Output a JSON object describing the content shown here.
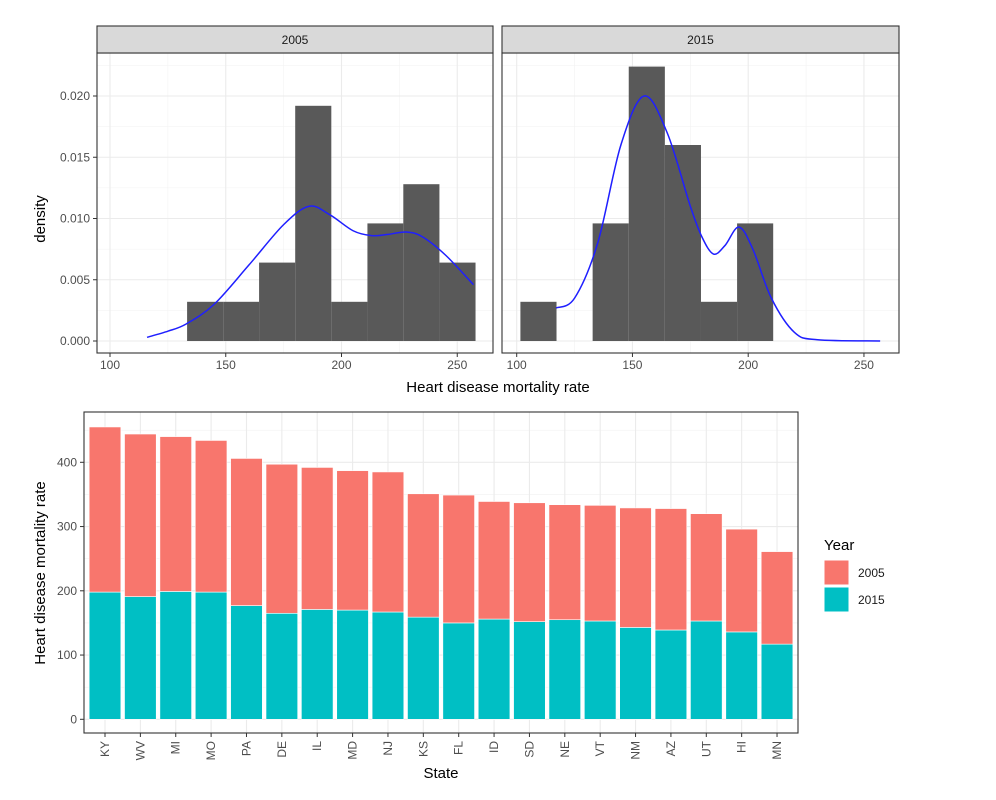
{
  "chart_data": [
    {
      "type": "histogram",
      "facets": [
        "2005",
        "2015"
      ],
      "xlabel": "Heart disease mortality rate",
      "ylabel": "density",
      "xlim": [
        95,
        265
      ],
      "ylim": [
        -0.0011,
        0.0235
      ],
      "x_ticks": [
        100,
        150,
        200,
        250
      ],
      "y_ticks": [
        "0.000",
        "0.005",
        "0.010",
        "0.015",
        "0.020"
      ],
      "grid": true,
      "bar_color": "#595959",
      "density_color": "#1f1fff",
      "panels": [
        {
          "facet": "2005",
          "bin_edges": [
            133.3,
            148.9,
            164.4,
            180.0,
            195.6,
            211.2,
            226.7,
            242.3,
            257.9
          ],
          "density": [
            0.0032,
            0.0032,
            0.0064,
            0.0192,
            0.0032,
            0.0096,
            0.0128,
            0.0064
          ],
          "density_curve": {
            "x": [
              116,
              125,
              133,
              145,
              160,
              175,
              186,
              195,
              205,
              213,
              220,
              228,
              235,
              245,
              257
            ],
            "y": [
              0.0003,
              0.0008,
              0.0014,
              0.003,
              0.0062,
              0.0095,
              0.011,
              0.0103,
              0.009,
              0.0086,
              0.0087,
              0.0089,
              0.0085,
              0.007,
              0.0046
            ]
          }
        },
        {
          "facet": "2015",
          "bin_edges": [
            101.6,
            117.2,
            132.8,
            148.4,
            164.0,
            179.6,
            195.2,
            210.8
          ],
          "density": [
            0.0032,
            0,
            0.0096,
            0.0224,
            0.016,
            0.0032,
            0.0096
          ],
          "density_curve": {
            "x": [
              117,
              125,
              135,
              145,
              155,
              165,
              175,
              180,
              185,
              190,
              196,
              202,
              210,
              220,
              230,
              257
            ],
            "y": [
              0.0027,
              0.0035,
              0.008,
              0.016,
              0.02,
              0.017,
              0.011,
              0.0085,
              0.0071,
              0.0078,
              0.0093,
              0.0075,
              0.0035,
              0.0007,
              0.0001,
              0.0
            ]
          }
        }
      ]
    },
    {
      "type": "bar",
      "stacked": true,
      "xlabel": "State",
      "ylabel": "Heart disease mortality rate",
      "ylim": [
        -23,
        478
      ],
      "y_ticks": [
        0,
        100,
        200,
        300,
        400
      ],
      "grid": true,
      "categories": [
        "KY",
        "WV",
        "MI",
        "MO",
        "PA",
        "DE",
        "IL",
        "MD",
        "NJ",
        "KS",
        "FL",
        "ID",
        "SD",
        "NE",
        "VT",
        "NM",
        "AZ",
        "UT",
        "HI",
        "MN"
      ],
      "legend": {
        "title": "Year",
        "placement": "right"
      },
      "series": [
        {
          "name": "2005",
          "color": "#f8766d",
          "values": [
            257,
            253,
            241,
            236,
            229,
            232,
            221,
            217,
            218,
            192,
            199,
            183,
            185,
            179,
            180,
            186,
            189,
            167,
            160,
            144
          ]
        },
        {
          "name": "2015",
          "color": "#00bfc4",
          "values": [
            198,
            191,
            199,
            198,
            177,
            165,
            171,
            170,
            167,
            159,
            150,
            156,
            152,
            155,
            153,
            143,
            139,
            153,
            136,
            117
          ]
        }
      ]
    }
  ]
}
